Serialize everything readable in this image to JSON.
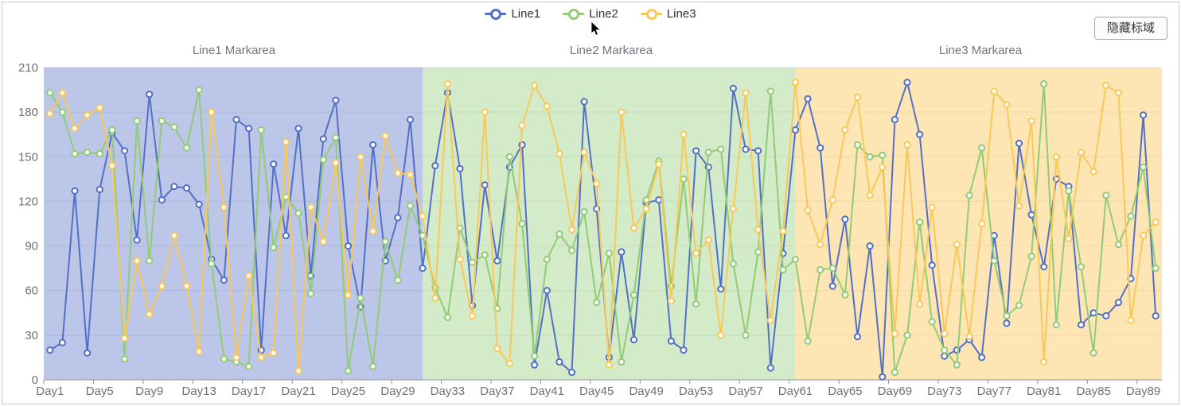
{
  "legend": {
    "items": [
      {
        "label": "Line1",
        "color": "#5470c6"
      },
      {
        "label": "Line2",
        "color": "#91cc75"
      },
      {
        "label": "Line3",
        "color": "#fac858"
      }
    ]
  },
  "button": {
    "label": "隐藏标域"
  },
  "axis": {
    "label_color": "#6E7079",
    "grid_color": "#E3E7F0",
    "axis_color": "#8b909a"
  },
  "chart_data": {
    "type": "line",
    "title": "",
    "xlabel": "",
    "ylabel": "",
    "ylim": [
      0,
      210
    ],
    "y_ticks": [
      0,
      30,
      60,
      90,
      120,
      150,
      180,
      210
    ],
    "grid": true,
    "legend_position": "top",
    "x_label_interval": 4,
    "x_tick_labels": [
      "Day1",
      "Day5",
      "Day9",
      "Day13",
      "Day17",
      "Day21",
      "Day25",
      "Day29",
      "Day33",
      "Day37",
      "Day41",
      "Day45",
      "Day49",
      "Day53",
      "Day57",
      "Day61",
      "Day65",
      "Day69",
      "Day73",
      "Day77",
      "Day81",
      "Day85",
      "Day89"
    ],
    "x": [
      "Day1",
      "Day2",
      "Day3",
      "Day4",
      "Day5",
      "Day6",
      "Day7",
      "Day8",
      "Day9",
      "Day10",
      "Day11",
      "Day12",
      "Day13",
      "Day14",
      "Day15",
      "Day16",
      "Day17",
      "Day18",
      "Day19",
      "Day20",
      "Day21",
      "Day22",
      "Day23",
      "Day24",
      "Day25",
      "Day26",
      "Day27",
      "Day28",
      "Day29",
      "Day30",
      "Day31",
      "Day32",
      "Day33",
      "Day34",
      "Day35",
      "Day36",
      "Day37",
      "Day38",
      "Day39",
      "Day40",
      "Day41",
      "Day42",
      "Day43",
      "Day44",
      "Day45",
      "Day46",
      "Day47",
      "Day48",
      "Day49",
      "Day50",
      "Day51",
      "Day52",
      "Day53",
      "Day54",
      "Day55",
      "Day56",
      "Day57",
      "Day58",
      "Day59",
      "Day60",
      "Day61",
      "Day62",
      "Day63",
      "Day64",
      "Day65",
      "Day66",
      "Day67",
      "Day68",
      "Day69",
      "Day70",
      "Day71",
      "Day72",
      "Day73",
      "Day74",
      "Day75",
      "Day76",
      "Day77",
      "Day78",
      "Day79",
      "Day80",
      "Day81",
      "Day82",
      "Day83",
      "Day84",
      "Day85",
      "Day86",
      "Day87",
      "Day88",
      "Day89",
      "Day90"
    ],
    "series": [
      {
        "name": "Line1",
        "color": "#5470c6",
        "values": [
          20,
          25,
          127,
          18,
          128,
          166,
          154,
          94,
          192,
          121,
          130,
          129,
          118,
          81,
          67,
          175,
          169,
          20,
          145,
          97,
          169,
          70,
          162,
          188,
          90,
          49,
          158,
          80,
          109,
          175,
          75,
          144,
          193,
          142,
          50,
          131,
          80,
          143,
          158,
          10,
          60,
          12,
          5,
          187,
          115,
          15,
          86,
          27,
          119,
          121,
          26,
          20,
          154,
          143,
          61,
          196,
          155,
          154,
          8,
          85,
          168,
          189,
          156,
          63,
          108,
          29,
          90,
          2,
          175,
          200,
          165,
          77,
          16,
          20,
          27,
          15,
          97,
          38,
          159,
          111,
          76,
          135,
          130,
          37,
          45,
          43,
          52,
          68,
          178,
          43
        ]
      },
      {
        "name": "Line2",
        "color": "#91cc75",
        "values": [
          193,
          180,
          152,
          153,
          152,
          168,
          14,
          174,
          80,
          174,
          170,
          156,
          195,
          78,
          14,
          12,
          9,
          168,
          89,
          123,
          112,
          58,
          148,
          163,
          6,
          55,
          9,
          93,
          67,
          117,
          97,
          62,
          42,
          102,
          79,
          84,
          48,
          150,
          105,
          16,
          81,
          98,
          87,
          113,
          52,
          85,
          12,
          57,
          121,
          147,
          63,
          135,
          51,
          153,
          155,
          78,
          30,
          86,
          194,
          74,
          81,
          26,
          74,
          75,
          57,
          158,
          150,
          151,
          5,
          30,
          106,
          39,
          20,
          10,
          124,
          156,
          80,
          43,
          50,
          83,
          199,
          37,
          127,
          76,
          18,
          124,
          91,
          110,
          143,
          75
        ]
      },
      {
        "name": "Line3",
        "color": "#fac858",
        "values": [
          179,
          193,
          169,
          178,
          183,
          144,
          28,
          80,
          44,
          63,
          97,
          63,
          19,
          180,
          116,
          15,
          70,
          15,
          18,
          160,
          6,
          116,
          93,
          146,
          57,
          150,
          100,
          164,
          139,
          138,
          110,
          55,
          199,
          81,
          43,
          180,
          21,
          11,
          171,
          198,
          184,
          152,
          101,
          153,
          132,
          10,
          180,
          102,
          115,
          145,
          53,
          165,
          85,
          94,
          30,
          115,
          193,
          101,
          40,
          100,
          200,
          114,
          91,
          121,
          168,
          190,
          124,
          143,
          31,
          158,
          51,
          116,
          31,
          91,
          29,
          105,
          194,
          185,
          117,
          174,
          12,
          150,
          95,
          153,
          140,
          198,
          193,
          40,
          97,
          106
        ]
      }
    ],
    "mark_areas": [
      {
        "label": "Line1 Markarea",
        "from": "Day1",
        "to": "Day31",
        "color": "rgba(84,112,198,0.4)"
      },
      {
        "label": "Line2 Markarea",
        "from": "Day31",
        "to": "Day61",
        "color": "rgba(145,204,117,0.4)"
      },
      {
        "label": "Line3 Markarea",
        "from": "Day61",
        "to": "Day90",
        "color": "rgba(250,200,88,0.45)"
      }
    ]
  }
}
